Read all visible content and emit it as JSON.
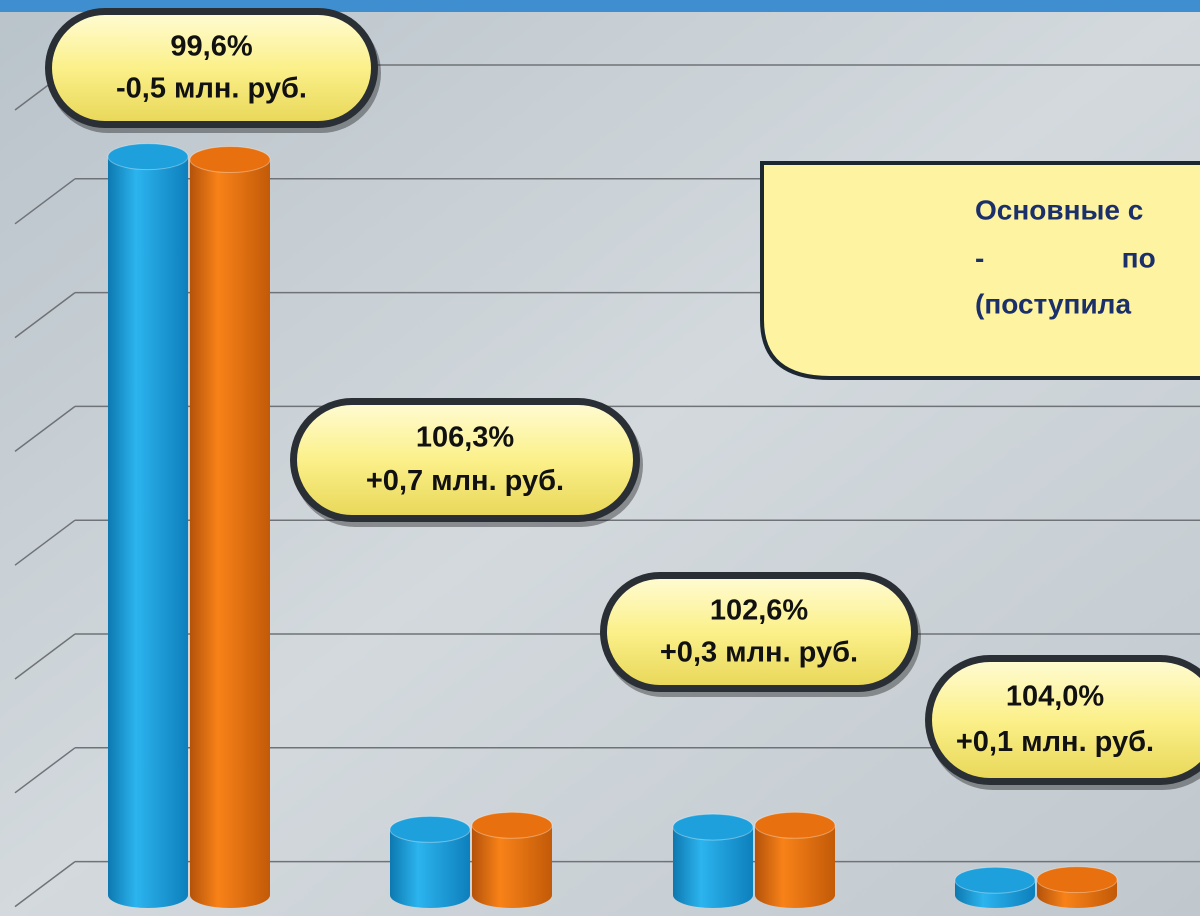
{
  "chart_data": {
    "type": "bar",
    "categories": [
      null,
      null,
      null,
      null
    ],
    "series": [
      {
        "color": "#1ea0dc",
        "values": [
          125,
          11.1,
          11.5,
          2.5
        ]
      },
      {
        "color": "#e8700e",
        "values": [
          124.5,
          11.8,
          11.8,
          2.6
        ]
      }
    ],
    "ylim": [
      0,
      140
    ],
    "annotations": [
      {
        "percent": "99,6%",
        "delta": "-0,5 млн. руб."
      },
      {
        "percent": "106,3%",
        "delta": "+0,7 млн. руб."
      },
      {
        "percent": "102,6%",
        "delta": "+0,3 млн. руб."
      },
      {
        "percent": "104,0%",
        "delta": "+0,1 млн. руб."
      }
    ],
    "note": [
      "Основные с",
      "-   по   т",
      "(поступила"
    ]
  }
}
